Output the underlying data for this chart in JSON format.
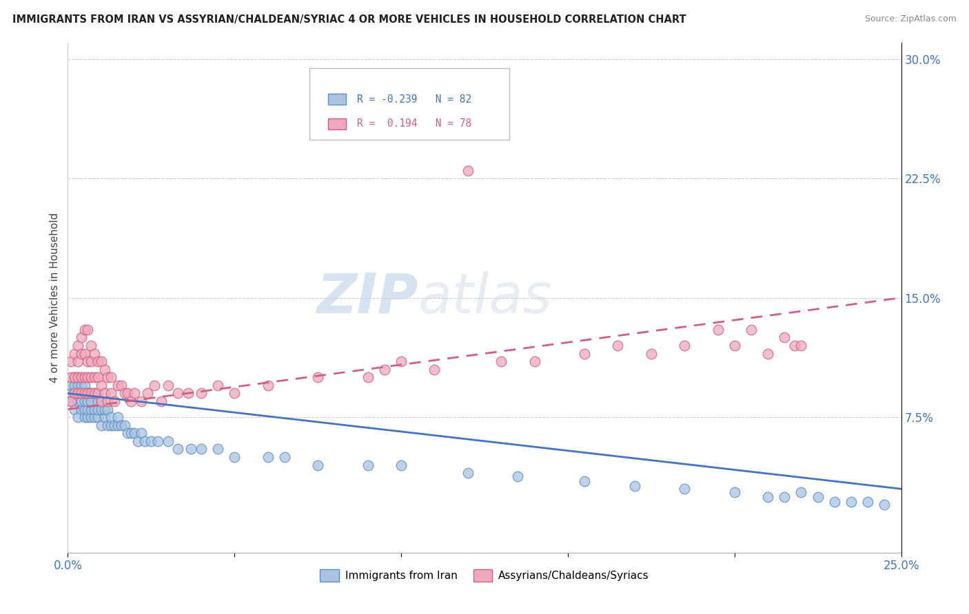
{
  "title": "IMMIGRANTS FROM IRAN VS ASSYRIAN/CHALDEAN/SYRIAC 4 OR MORE VEHICLES IN HOUSEHOLD CORRELATION CHART",
  "source": "Source: ZipAtlas.com",
  "ylabel": "4 or more Vehicles in Household",
  "xmin": 0.0,
  "xmax": 0.25,
  "ymin": -0.01,
  "ymax": 0.31,
  "blue_r": -0.239,
  "blue_n": 82,
  "pink_r": 0.194,
  "pink_n": 78,
  "blue_color": "#aac4e0",
  "pink_color": "#f0a8bc",
  "blue_edge_color": "#5b8dc8",
  "pink_edge_color": "#d06080",
  "blue_line_color": "#4472c4",
  "pink_line_color": "#d06080",
  "legend_label_blue": "Immigrants from Iran",
  "legend_label_pink": "Assyrians/Chaldeans/Syriacs",
  "watermark_zip": "ZIP",
  "watermark_atlas": "atlas",
  "right_yticks": [
    0.0,
    0.075,
    0.15,
    0.225,
    0.3
  ],
  "blue_scatter_x": [
    0.001,
    0.001,
    0.001,
    0.002,
    0.002,
    0.002,
    0.002,
    0.003,
    0.003,
    0.003,
    0.003,
    0.003,
    0.004,
    0.004,
    0.004,
    0.004,
    0.005,
    0.005,
    0.005,
    0.005,
    0.005,
    0.006,
    0.006,
    0.006,
    0.006,
    0.007,
    0.007,
    0.007,
    0.007,
    0.008,
    0.008,
    0.008,
    0.009,
    0.009,
    0.009,
    0.01,
    0.01,
    0.01,
    0.011,
    0.011,
    0.012,
    0.012,
    0.013,
    0.013,
    0.014,
    0.015,
    0.015,
    0.016,
    0.017,
    0.018,
    0.019,
    0.02,
    0.021,
    0.022,
    0.023,
    0.025,
    0.027,
    0.03,
    0.033,
    0.037,
    0.04,
    0.045,
    0.05,
    0.06,
    0.065,
    0.075,
    0.09,
    0.1,
    0.12,
    0.135,
    0.155,
    0.17,
    0.185,
    0.2,
    0.21,
    0.215,
    0.22,
    0.225,
    0.23,
    0.235,
    0.24,
    0.245
  ],
  "blue_scatter_y": [
    0.085,
    0.09,
    0.095,
    0.08,
    0.09,
    0.095,
    0.1,
    0.075,
    0.085,
    0.09,
    0.095,
    0.1,
    0.08,
    0.085,
    0.09,
    0.095,
    0.075,
    0.08,
    0.085,
    0.09,
    0.095,
    0.075,
    0.08,
    0.085,
    0.09,
    0.075,
    0.08,
    0.085,
    0.09,
    0.075,
    0.08,
    0.09,
    0.075,
    0.08,
    0.085,
    0.07,
    0.08,
    0.085,
    0.075,
    0.08,
    0.07,
    0.08,
    0.07,
    0.075,
    0.07,
    0.07,
    0.075,
    0.07,
    0.07,
    0.065,
    0.065,
    0.065,
    0.06,
    0.065,
    0.06,
    0.06,
    0.06,
    0.06,
    0.055,
    0.055,
    0.055,
    0.055,
    0.05,
    0.05,
    0.05,
    0.045,
    0.045,
    0.045,
    0.04,
    0.038,
    0.035,
    0.032,
    0.03,
    0.028,
    0.025,
    0.025,
    0.028,
    0.025,
    0.022,
    0.022,
    0.022,
    0.02
  ],
  "pink_scatter_x": [
    0.001,
    0.001,
    0.001,
    0.002,
    0.002,
    0.002,
    0.003,
    0.003,
    0.003,
    0.003,
    0.004,
    0.004,
    0.004,
    0.004,
    0.005,
    0.005,
    0.005,
    0.005,
    0.006,
    0.006,
    0.006,
    0.006,
    0.007,
    0.007,
    0.007,
    0.007,
    0.008,
    0.008,
    0.008,
    0.009,
    0.009,
    0.009,
    0.01,
    0.01,
    0.01,
    0.011,
    0.011,
    0.012,
    0.012,
    0.013,
    0.013,
    0.014,
    0.015,
    0.016,
    0.017,
    0.018,
    0.019,
    0.02,
    0.022,
    0.024,
    0.026,
    0.028,
    0.03,
    0.033,
    0.036,
    0.04,
    0.045,
    0.05,
    0.06,
    0.075,
    0.09,
    0.095,
    0.1,
    0.11,
    0.12,
    0.13,
    0.14,
    0.155,
    0.165,
    0.175,
    0.185,
    0.195,
    0.2,
    0.205,
    0.21,
    0.215,
    0.218,
    0.22
  ],
  "pink_scatter_y": [
    0.085,
    0.1,
    0.11,
    0.09,
    0.1,
    0.115,
    0.09,
    0.1,
    0.11,
    0.12,
    0.09,
    0.1,
    0.115,
    0.125,
    0.09,
    0.1,
    0.115,
    0.13,
    0.09,
    0.1,
    0.11,
    0.13,
    0.09,
    0.1,
    0.11,
    0.12,
    0.09,
    0.1,
    0.115,
    0.09,
    0.1,
    0.11,
    0.085,
    0.095,
    0.11,
    0.09,
    0.105,
    0.085,
    0.1,
    0.09,
    0.1,
    0.085,
    0.095,
    0.095,
    0.09,
    0.09,
    0.085,
    0.09,
    0.085,
    0.09,
    0.095,
    0.085,
    0.095,
    0.09,
    0.09,
    0.09,
    0.095,
    0.09,
    0.095,
    0.1,
    0.1,
    0.105,
    0.11,
    0.105,
    0.23,
    0.11,
    0.11,
    0.115,
    0.12,
    0.115,
    0.12,
    0.13,
    0.12,
    0.13,
    0.115,
    0.125,
    0.12,
    0.12
  ]
}
